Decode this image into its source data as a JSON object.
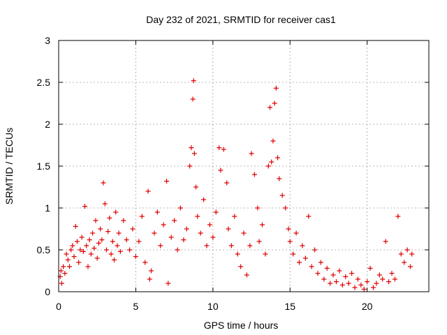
{
  "chart_data": {
    "type": "scatter",
    "title": "Day 232 of 2021, SRMTID for receiver cas1",
    "xlabel": "GPS time / hours",
    "ylabel": "SRMTID / TECUs",
    "xlim": [
      0,
      24
    ],
    "ylim": [
      0,
      3
    ],
    "xticks": [
      0,
      5,
      10,
      15,
      20
    ],
    "yticks": [
      0,
      0.5,
      1,
      1.5,
      2,
      2.5,
      3
    ],
    "xtick_labels": [
      "0",
      "5",
      "10",
      "15",
      "20"
    ],
    "ytick_labels": [
      "0",
      "0.5",
      "1",
      "1.5",
      "2",
      "2.5",
      "3"
    ],
    "grid": true,
    "marker": "+",
    "color": "#e00000",
    "series": [
      {
        "name": "SRMTID",
        "points": [
          [
            0.1,
            0.18
          ],
          [
            0.15,
            0.25
          ],
          [
            0.2,
            0.1
          ],
          [
            0.3,
            0.3
          ],
          [
            0.4,
            0.22
          ],
          [
            0.5,
            0.45
          ],
          [
            0.6,
            0.38
          ],
          [
            0.7,
            0.3
          ],
          [
            0.8,
            0.5
          ],
          [
            0.9,
            0.55
          ],
          [
            1.0,
            0.42
          ],
          [
            1.1,
            0.78
          ],
          [
            1.2,
            0.6
          ],
          [
            1.3,
            0.35
          ],
          [
            1.4,
            0.5
          ],
          [
            1.5,
            0.65
          ],
          [
            1.6,
            0.48
          ],
          [
            1.7,
            1.02
          ],
          [
            1.8,
            0.55
          ],
          [
            1.9,
            0.3
          ],
          [
            2.0,
            0.62
          ],
          [
            2.1,
            0.45
          ],
          [
            2.2,
            0.7
          ],
          [
            2.3,
            0.52
          ],
          [
            2.4,
            0.85
          ],
          [
            2.5,
            0.4
          ],
          [
            2.6,
            0.58
          ],
          [
            2.7,
            0.75
          ],
          [
            2.8,
            0.62
          ],
          [
            2.9,
            1.3
          ],
          [
            3.0,
            1.05
          ],
          [
            3.1,
            0.5
          ],
          [
            3.2,
            0.72
          ],
          [
            3.3,
            0.88
          ],
          [
            3.4,
            0.45
          ],
          [
            3.5,
            0.6
          ],
          [
            3.6,
            0.38
          ],
          [
            3.7,
            0.95
          ],
          [
            3.8,
            0.55
          ],
          [
            3.9,
            0.7
          ],
          [
            4.0,
            0.48
          ],
          [
            4.2,
            0.85
          ],
          [
            4.4,
            0.62
          ],
          [
            4.6,
            0.5
          ],
          [
            4.8,
            0.75
          ],
          [
            5.0,
            0.42
          ],
          [
            5.2,
            0.6
          ],
          [
            5.4,
            0.9
          ],
          [
            5.6,
            0.35
          ],
          [
            5.8,
            1.2
          ],
          [
            5.9,
            0.15
          ],
          [
            6.0,
            0.25
          ],
          [
            6.2,
            0.7
          ],
          [
            6.4,
            0.95
          ],
          [
            6.6,
            0.55
          ],
          [
            6.8,
            0.8
          ],
          [
            7.0,
            1.32
          ],
          [
            7.1,
            0.1
          ],
          [
            7.3,
            0.65
          ],
          [
            7.5,
            0.85
          ],
          [
            7.7,
            0.5
          ],
          [
            7.9,
            1.0
          ],
          [
            8.1,
            0.62
          ],
          [
            8.3,
            0.75
          ],
          [
            8.5,
            1.5
          ],
          [
            8.6,
            1.72
          ],
          [
            8.7,
            2.3
          ],
          [
            8.75,
            2.52
          ],
          [
            8.8,
            1.65
          ],
          [
            8.9,
            1.25
          ],
          [
            9.0,
            0.9
          ],
          [
            9.2,
            0.7
          ],
          [
            9.4,
            1.1
          ],
          [
            9.6,
            0.55
          ],
          [
            9.8,
            0.8
          ],
          [
            10.0,
            0.65
          ],
          [
            10.2,
            0.95
          ],
          [
            10.4,
            1.72
          ],
          [
            10.5,
            1.45
          ],
          [
            10.7,
            1.7
          ],
          [
            10.9,
            1.3
          ],
          [
            11.0,
            0.75
          ],
          [
            11.2,
            0.55
          ],
          [
            11.4,
            0.9
          ],
          [
            11.6,
            0.45
          ],
          [
            11.8,
            0.3
          ],
          [
            12.0,
            0.7
          ],
          [
            12.2,
            0.2
          ],
          [
            12.4,
            0.55
          ],
          [
            12.5,
            1.65
          ],
          [
            12.7,
            1.4
          ],
          [
            12.9,
            1.0
          ],
          [
            13.0,
            0.6
          ],
          [
            13.2,
            0.8
          ],
          [
            13.4,
            0.45
          ],
          [
            13.6,
            1.5
          ],
          [
            13.7,
            2.2
          ],
          [
            13.8,
            1.55
          ],
          [
            13.9,
            1.8
          ],
          [
            14.0,
            2.25
          ],
          [
            14.1,
            2.43
          ],
          [
            14.2,
            1.6
          ],
          [
            14.3,
            1.35
          ],
          [
            14.5,
            1.15
          ],
          [
            14.7,
            1.0
          ],
          [
            14.9,
            0.75
          ],
          [
            15.0,
            0.6
          ],
          [
            15.2,
            0.45
          ],
          [
            15.4,
            0.7
          ],
          [
            15.6,
            0.35
          ],
          [
            15.8,
            0.55
          ],
          [
            16.0,
            0.4
          ],
          [
            16.2,
            0.9
          ],
          [
            16.4,
            0.3
          ],
          [
            16.6,
            0.5
          ],
          [
            16.8,
            0.22
          ],
          [
            17.0,
            0.35
          ],
          [
            17.2,
            0.15
          ],
          [
            17.4,
            0.28
          ],
          [
            17.6,
            0.1
          ],
          [
            17.8,
            0.2
          ],
          [
            18.0,
            0.12
          ],
          [
            18.2,
            0.25
          ],
          [
            18.4,
            0.08
          ],
          [
            18.6,
            0.18
          ],
          [
            18.8,
            0.1
          ],
          [
            19.0,
            0.22
          ],
          [
            19.2,
            0.05
          ],
          [
            19.4,
            0.15
          ],
          [
            19.6,
            0.08
          ],
          [
            19.8,
            0.03
          ],
          [
            20.0,
            0.12
          ],
          [
            20.2,
            0.28
          ],
          [
            20.4,
            0.05
          ],
          [
            20.6,
            0.1
          ],
          [
            20.8,
            0.2
          ],
          [
            21.0,
            0.15
          ],
          [
            21.2,
            0.6
          ],
          [
            21.4,
            0.12
          ],
          [
            21.6,
            0.22
          ],
          [
            21.8,
            0.15
          ],
          [
            22.0,
            0.9
          ],
          [
            22.2,
            0.45
          ],
          [
            22.4,
            0.35
          ],
          [
            22.6,
            0.5
          ],
          [
            22.8,
            0.3
          ],
          [
            22.9,
            0.45
          ]
        ]
      }
    ]
  }
}
